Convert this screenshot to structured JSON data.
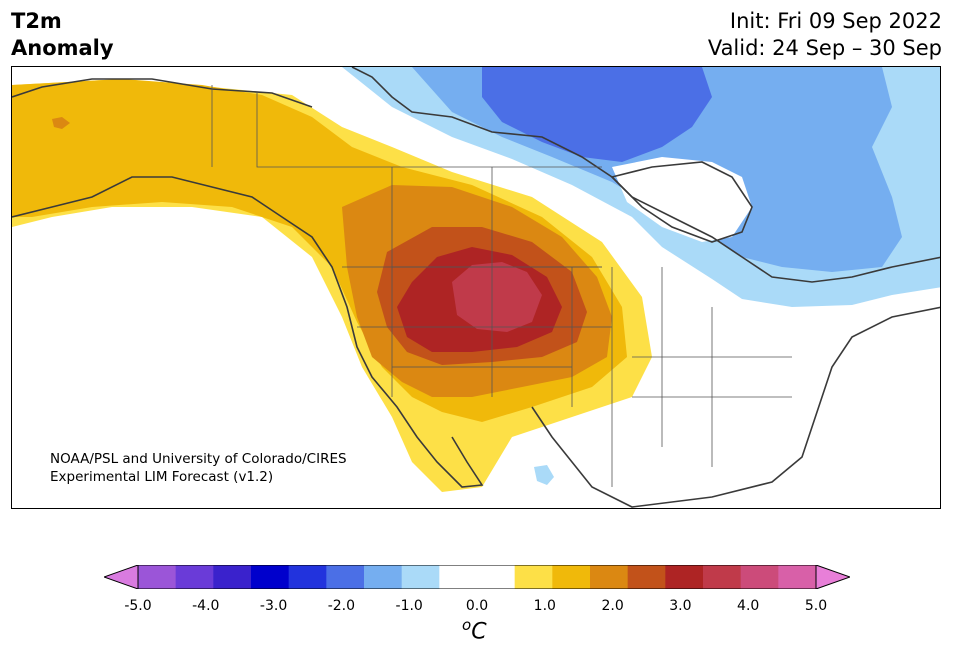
{
  "header": {
    "title_line1": "T2m",
    "title_line2": "Anomaly",
    "init": "Init: Fri 09 Sep 2022",
    "valid": "Valid: 24 Sep – 30 Sep"
  },
  "credit": {
    "line1": "NOAA/PSL and University of Colorado/CIRES",
    "line2": "Experimental LIM Forecast (v1.2)"
  },
  "colorbar": {
    "unit_base": "C",
    "unit_sup": "o",
    "tick_labels": [
      "-5.0",
      "-4.0",
      "-3.0",
      "-2.0",
      "-1.0",
      "0.0",
      "1.0",
      "2.0",
      "3.0",
      "4.0",
      "5.0"
    ],
    "low_extend_color": "#d97be0",
    "high_extend_color": "#e87fd8",
    "colors": [
      "#d97be0",
      "#9b55d8",
      "#6a3bd8",
      "#3a22cc",
      "#0000cc",
      "#2233dd",
      "#4b6fe6",
      "#75aef0",
      "#aadaf8",
      "#ffffff",
      "#ffffff",
      "#fde047",
      "#f0b90a",
      "#db8812",
      "#c2521a",
      "#ae2424",
      "#c03a4a",
      "#cc4b7a",
      "#d860a8",
      "#e87fd8"
    ]
  },
  "legend_colors": {
    "pos_05": "#fde047",
    "pos_10": "#f0b90a",
    "pos_15": "#db8812",
    "pos_20": "#c2521a",
    "pos_25": "#ae2424",
    "pos_30": "#c03a4a",
    "neg_05": "#aadaf8",
    "neg_10": "#75aef0",
    "neg_15": "#4b6fe6"
  }
}
